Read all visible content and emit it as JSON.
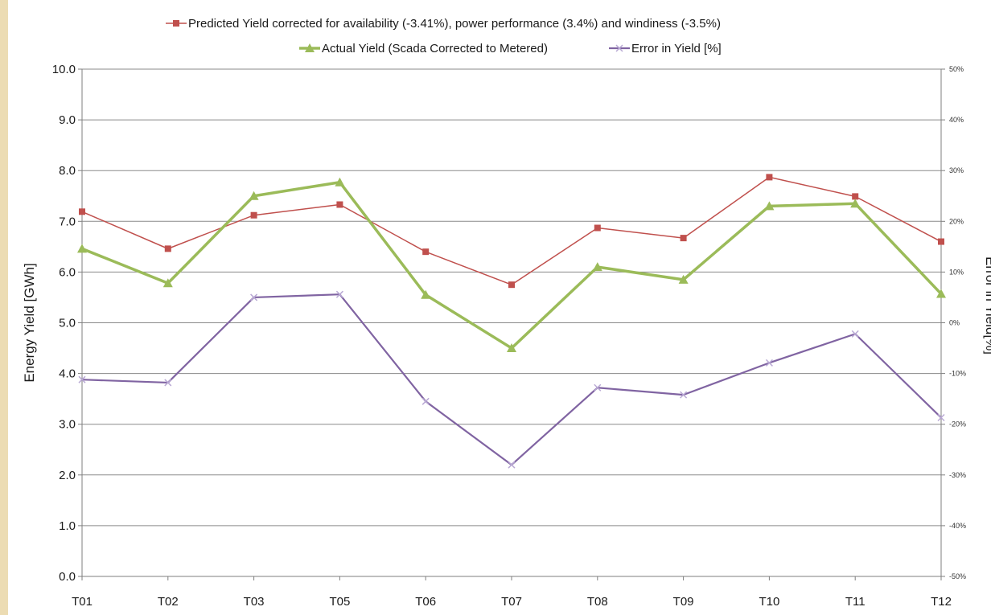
{
  "chart_data": {
    "type": "line",
    "categories": [
      "T01",
      "T02",
      "T03",
      "T05",
      "T06",
      "T07",
      "T08",
      "T09",
      "T10",
      "T11",
      "T12"
    ],
    "ylabel": "Energy Yield  [GWh]",
    "y2label": "Error in Yield[%]",
    "ylim": [
      0,
      10
    ],
    "y2lim": [
      -50,
      50
    ],
    "yticks": [
      "0.0",
      "1.0",
      "2.0",
      "3.0",
      "4.0",
      "5.0",
      "6.0",
      "7.0",
      "8.0",
      "9.0",
      "10.0"
    ],
    "y2ticks": [
      "-50%",
      "-40%",
      "-30%",
      "-20%",
      "-10%",
      "0%",
      "10%",
      "20%",
      "30%",
      "40%",
      "50%"
    ],
    "grid": true,
    "legend_position": "top",
    "series": [
      {
        "name": "Predicted Yield corrected for availability (-3.41%), power performance (3.4%) and windiness (-3.5%)",
        "axis": "left",
        "color": "#c0504d",
        "marker": "square",
        "values": [
          7.19,
          6.46,
          7.12,
          7.33,
          6.4,
          5.75,
          6.87,
          6.67,
          7.87,
          7.49,
          6.6
        ]
      },
      {
        "name": "Actual Yield (Scada Corrected to Metered)",
        "axis": "left",
        "color": "#9bbb59",
        "marker": "triangle",
        "values": [
          6.46,
          5.78,
          7.5,
          7.77,
          5.55,
          4.5,
          6.1,
          5.85,
          7.3,
          7.35,
          5.57
        ]
      },
      {
        "name": "Error in Yield [%]",
        "axis": "right",
        "color": "#8064a2",
        "marker": "x",
        "values": [
          -11.2,
          -11.8,
          5.0,
          5.6,
          -15.5,
          -28.0,
          -12.8,
          -14.2,
          -7.9,
          -2.2,
          -18.7
        ]
      }
    ]
  }
}
